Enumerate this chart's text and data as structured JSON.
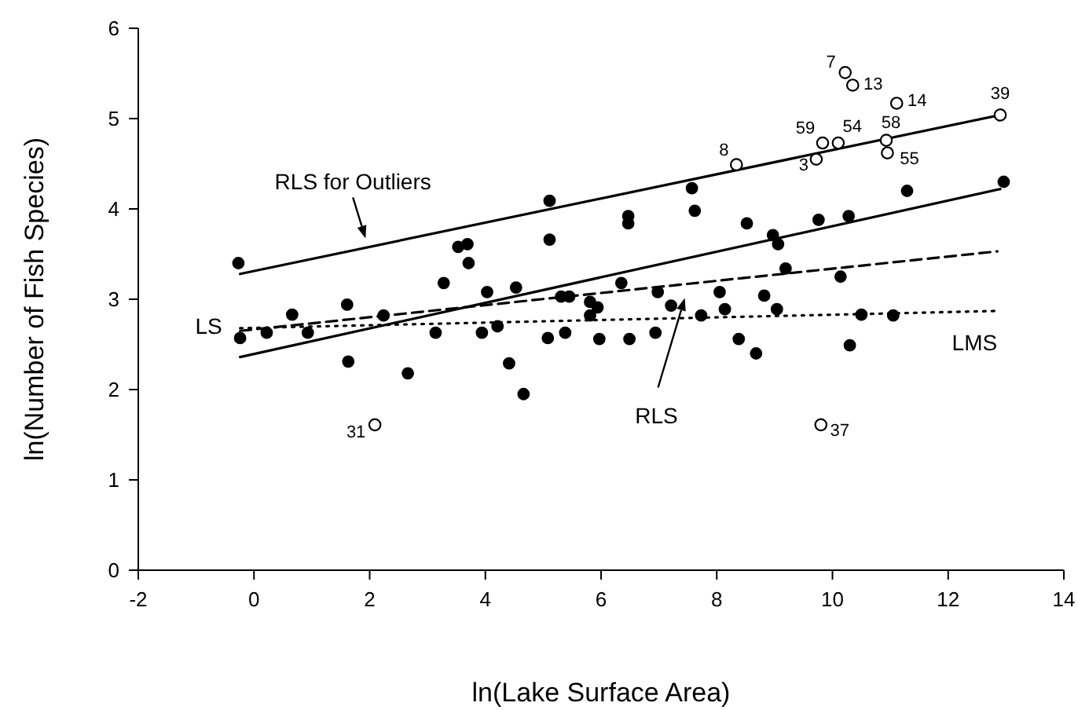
{
  "chart_data": {
    "type": "scatter",
    "xlabel": "ln(Lake Surface Area)",
    "ylabel": "ln(Number of Fish Species)",
    "xlim": [
      -2,
      14
    ],
    "ylim": [
      0,
      6
    ],
    "xticks": [
      -2,
      0,
      2,
      4,
      6,
      8,
      10,
      12,
      14
    ],
    "yticks": [
      0,
      1,
      2,
      3,
      4,
      5,
      6
    ],
    "grid": false,
    "legend": false,
    "series": [
      {
        "color": "#000000",
        "marker": "circle",
        "x": [
          -0.27,
          -0.24,
          0.22,
          0.66,
          0.93,
          1.61,
          2.24,
          1.63,
          2.66,
          3.14,
          3.28,
          3.53,
          3.69,
          3.71,
          3.94,
          4.03,
          4.21,
          4.41,
          4.66,
          4.53,
          5.11,
          5.11,
          5.08,
          5.38,
          5.31,
          5.45,
          5.81,
          5.81,
          5.94,
          5.97,
          6.47,
          6.47,
          6.35,
          6.49,
          6.94,
          6.98,
          7.21,
          7.57,
          7.62,
          7.73,
          8.05,
          8.14,
          8.38,
          8.52,
          8.68,
          8.82,
          8.97,
          9.06,
          9.04,
          9.19,
          9.76,
          10.14,
          10.28,
          10.3,
          10.5,
          11.05,
          11.29,
          12.96
        ],
        "values": [
          3.4,
          2.57,
          2.63,
          2.83,
          2.63,
          2.94,
          2.82,
          2.31,
          2.18,
          2.63,
          3.18,
          3.58,
          3.61,
          3.4,
          2.63,
          3.08,
          2.7,
          2.29,
          1.95,
          3.13,
          4.09,
          3.66,
          2.57,
          2.63,
          3.03,
          3.03,
          2.97,
          2.82,
          2.91,
          2.56,
          3.92,
          3.84,
          3.18,
          2.56,
          2.63,
          3.08,
          2.93,
          4.23,
          3.98,
          2.82,
          3.08,
          2.89,
          2.56,
          3.84,
          2.4,
          3.04,
          3.71,
          3.61,
          2.89,
          3.34,
          3.88,
          3.25,
          3.92,
          2.49,
          2.83,
          2.82,
          4.2,
          4.3
        ]
      },
      {
        "color": "#000000",
        "marker": "circle",
        "x": [
          10.22,
          10.35,
          11.11,
          12.9,
          9.83,
          10.1,
          10.93,
          10.95,
          9.72,
          8.34,
          2.09,
          9.8
        ],
        "values": [
          5.51,
          5.37,
          5.17,
          5.04,
          4.73,
          4.73,
          4.76,
          4.62,
          4.55,
          4.49,
          1.61,
          1.61
        ]
      },
      {
        "type": "line",
        "name": "RLS for Outliers",
        "color": "#000000",
        "line_style": "solid",
        "x": [
          -0.24,
          12.9
        ],
        "values": [
          3.28,
          5.04
        ]
      },
      {
        "type": "line",
        "name": "RLS",
        "color": "#000000",
        "line_style": "solid",
        "x": [
          -0.24,
          12.9
        ],
        "values": [
          2.36,
          4.22
        ]
      },
      {
        "type": "line",
        "name": "LS",
        "color": "#000000",
        "line_style": "dashed",
        "x": [
          -0.24,
          12.85
        ],
        "values": [
          2.65,
          3.53
        ]
      },
      {
        "type": "line",
        "name": "LMS",
        "color": "#000000",
        "line_style": "dotted",
        "x": [
          -0.24,
          12.81
        ],
        "values": [
          2.68,
          2.87
        ]
      }
    ],
    "annotations": [
      {
        "text": "7",
        "x": 10.22,
        "y": 5.51
      },
      {
        "text": "13",
        "x": 10.35,
        "y": 5.37
      },
      {
        "text": "14",
        "x": 11.11,
        "y": 5.17
      },
      {
        "text": "39",
        "x": 12.9,
        "y": 5.04
      },
      {
        "text": "59",
        "x": 9.83,
        "y": 4.73
      },
      {
        "text": "54",
        "x": 10.1,
        "y": 4.73
      },
      {
        "text": "58",
        "x": 10.93,
        "y": 4.76
      },
      {
        "text": "55",
        "x": 10.95,
        "y": 4.62
      },
      {
        "text": "3",
        "x": 9.72,
        "y": 4.55
      },
      {
        "text": "8",
        "x": 8.34,
        "y": 4.49
      },
      {
        "text": "31",
        "x": 2.09,
        "y": 1.61
      },
      {
        "text": "37",
        "x": 9.8,
        "y": 1.61
      }
    ]
  }
}
